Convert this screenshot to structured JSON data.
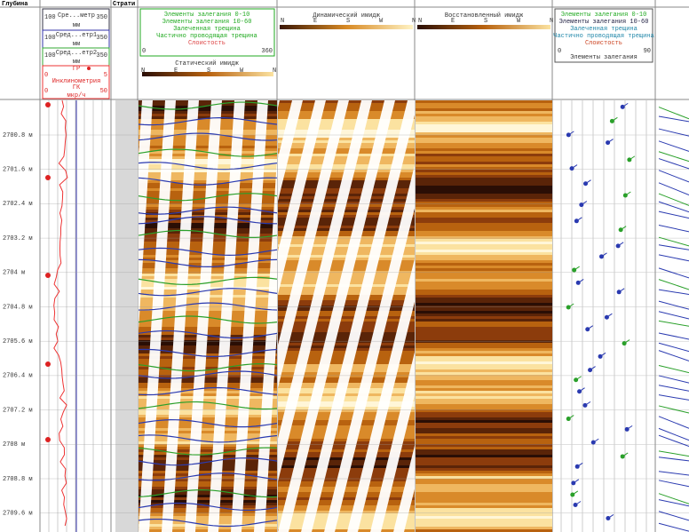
{
  "header": {
    "depth": "Глубина",
    "strat": "Страти"
  },
  "track1": {
    "caliper": {
      "min": "100",
      "name": "Сре...метр",
      "max": "350",
      "unit": "мм"
    },
    "diam1": {
      "min": "100",
      "name": "Сред...етр1",
      "max": "350",
      "unit": "мм"
    },
    "diam2": {
      "min": "100",
      "name": "Сред...етр2",
      "max": "350",
      "unit": "мм"
    },
    "gr": {
      "name": "ГР",
      "min": "0",
      "max": "5"
    },
    "incl": "Инклинометрия",
    "gk": {
      "min": "0",
      "name": "ГК",
      "max": "50",
      "unit": "мкр/ч"
    }
  },
  "legend": {
    "items": [
      "Элементы залегания 0-10",
      "Элементы залегания 10-60",
      "Залеченная трещина",
      "Частично проводящая трещина",
      "Слоистость"
    ],
    "min": "0",
    "max": "360"
  },
  "static": {
    "title": "Статический имидж",
    "dirs": [
      "N",
      "E",
      "S",
      "W",
      "N"
    ]
  },
  "dynamic": {
    "title": "Динамический имидж",
    "dirs": [
      "N",
      "E",
      "S",
      "W",
      "N"
    ]
  },
  "restored": {
    "title": "Восстановленный имидж",
    "dirs": [
      "N",
      "E",
      "S",
      "W",
      "N"
    ]
  },
  "dips": {
    "items": [
      "Элементы залегания 0-10",
      "Элементы залегания 10-60",
      "Залеченная трещина",
      "Частично проводящая трещина",
      "Слоистость"
    ],
    "min": "0",
    "title": "Элементы залегания",
    "max": "90"
  },
  "depths": [
    "2700.8 м",
    "2701.6 м",
    "2702.4 м",
    "2703.2 м",
    "2704 м",
    "2704.8 м",
    "2705.6 м",
    "2706.4 м",
    "2707.2 м",
    "2708 м",
    "2708.8 м",
    "2709.6 м"
  ]
}
